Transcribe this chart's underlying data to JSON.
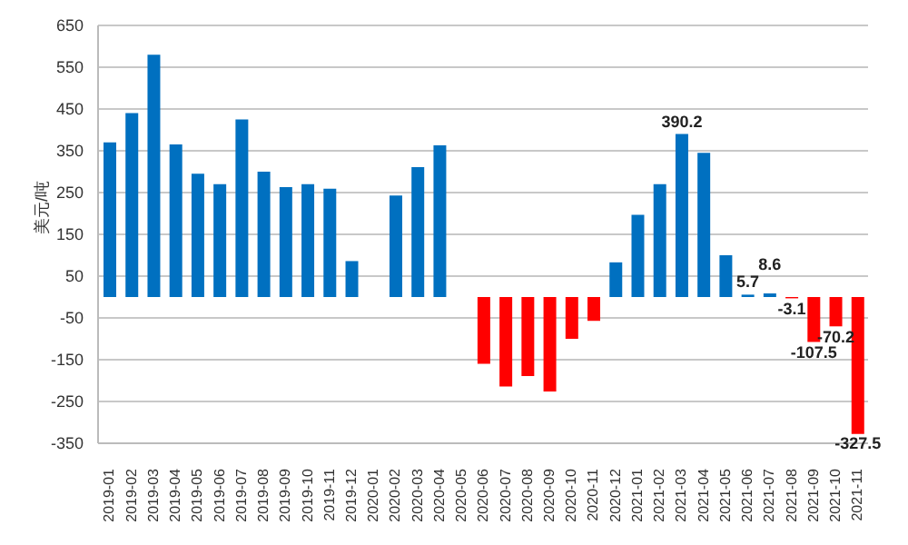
{
  "chart_data": {
    "type": "bar",
    "ylabel": "美元/吨",
    "categories": [
      "2019-01",
      "2019-02",
      "2019-03",
      "2019-04",
      "2019-05",
      "2019-06",
      "2019-07",
      "2019-08",
      "2019-09",
      "2019-10",
      "2019-11",
      "2019-12",
      "2020-01",
      "2020-02",
      "2020-03",
      "2020-04",
      "2020-05",
      "2020-06",
      "2020-07",
      "2020-08",
      "2020-09",
      "2020-10",
      "2020-11",
      "2020-12",
      "2021-01",
      "2021-02",
      "2021-03",
      "2021-04",
      "2021-05",
      "2021-06",
      "2021-07",
      "2021-08",
      "2021-09",
      "2021-10",
      "2021-11"
    ],
    "values": [
      370,
      440,
      580,
      365,
      295,
      270,
      425,
      300,
      263,
      270,
      259,
      86,
      null,
      243,
      311,
      363,
      null,
      -160,
      -214,
      -189,
      -226,
      -100,
      -57,
      83,
      197,
      270,
      390.2,
      345,
      100,
      5.7,
      8.6,
      -3.1,
      -107.5,
      -70.2,
      -327.5
    ],
    "colors": [
      "#0070c0",
      "#0070c0",
      "#0070c0",
      "#0070c0",
      "#0070c0",
      "#0070c0",
      "#0070c0",
      "#0070c0",
      "#0070c0",
      "#0070c0",
      "#0070c0",
      "#0070c0",
      "#0070c0",
      "#0070c0",
      "#0070c0",
      "#0070c0",
      "#0070c0",
      "#ff0000",
      "#ff0000",
      "#ff0000",
      "#ff0000",
      "#ff0000",
      "#ff0000",
      "#0070c0",
      "#0070c0",
      "#0070c0",
      "#0070c0",
      "#0070c0",
      "#0070c0",
      "#0070c0",
      "#0070c0",
      "#ff0000",
      "#ff0000",
      "#ff0000",
      "#ff0000"
    ],
    "value_labels": [
      null,
      null,
      null,
      null,
      null,
      null,
      null,
      null,
      null,
      null,
      null,
      null,
      null,
      null,
      null,
      null,
      null,
      null,
      null,
      null,
      null,
      null,
      null,
      null,
      null,
      null,
      "390.2",
      null,
      null,
      "5.7",
      "8.6",
      "-3.1",
      "-107.5",
      "-70.2",
      "-327.5"
    ],
    "ylim": [
      -350,
      650
    ],
    "yticks": [
      -350,
      -250,
      -150,
      -50,
      50,
      150,
      250,
      350,
      450,
      550,
      650
    ],
    "grid": "y"
  }
}
